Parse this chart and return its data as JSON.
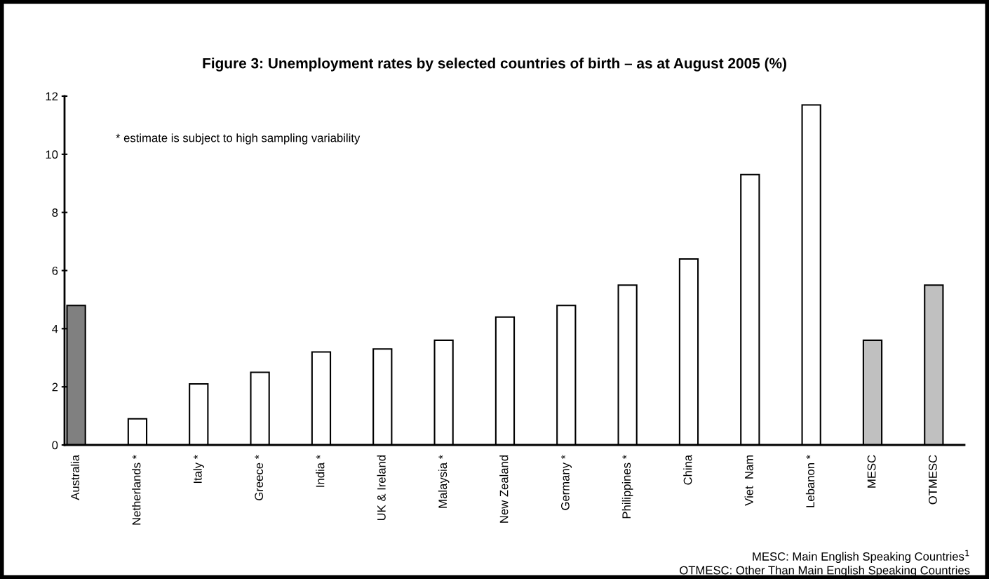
{
  "chart_data": {
    "type": "bar",
    "title": "Figure 3: Unemployment rates by selected countries of birth – as at August 2005 (%)",
    "categories": [
      "Australia",
      "Netherlands *",
      "Italy *",
      "Greece *",
      "India *",
      "UK & Ireland",
      "Malaysia *",
      "New Zealand",
      "Germany *",
      "Philippines *",
      "China",
      "Viet  Nam",
      "Lebanon *",
      "MESC",
      "OTMESC"
    ],
    "values": [
      4.8,
      0.9,
      2.1,
      2.5,
      3.2,
      3.3,
      3.6,
      4.4,
      4.8,
      5.5,
      6.4,
      9.3,
      11.7,
      3.6,
      5.5
    ],
    "colors": [
      "#808080",
      "#ffffff",
      "#ffffff",
      "#ffffff",
      "#ffffff",
      "#ffffff",
      "#ffffff",
      "#ffffff",
      "#ffffff",
      "#ffffff",
      "#ffffff",
      "#ffffff",
      "#ffffff",
      "#c0c0c0",
      "#c0c0c0"
    ],
    "ylim": [
      0,
      12
    ],
    "yticks": [
      0,
      2,
      4,
      6,
      8,
      10,
      12
    ],
    "grid": false,
    "annotations": [
      "* estimate is subject to high sampling variability",
      "MESC: Main English Speaking Countries$^{1}$",
      "OTMESC: Other Than Main English Speaking Countries"
    ]
  }
}
